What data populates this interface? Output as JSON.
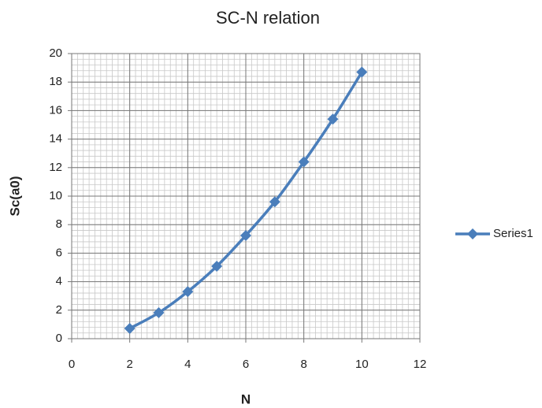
{
  "chart_data": {
    "type": "line",
    "title": "SC-N relation",
    "x_label": "N",
    "y_label": "Sc(a0)",
    "x": [
      2,
      3,
      4,
      5,
      6,
      7,
      8,
      9,
      10
    ],
    "series": [
      {
        "name": "Series1",
        "color": "#4a7ebb",
        "values": [
          0.72,
          1.82,
          3.3,
          5.08,
          7.24,
          9.6,
          12.4,
          15.4,
          18.7
        ]
      }
    ],
    "xlim": [
      0,
      12
    ],
    "xticks": [
      0,
      2,
      4,
      6,
      8,
      10,
      12
    ],
    "ylim": [
      0,
      20
    ],
    "yticks": [
      0,
      2,
      4,
      6,
      8,
      10,
      12,
      14,
      16,
      18,
      20
    ],
    "grid": true,
    "minor_grid": {
      "x": 0.2,
      "y": 0.4
    },
    "smooth": true,
    "legend": "right"
  }
}
